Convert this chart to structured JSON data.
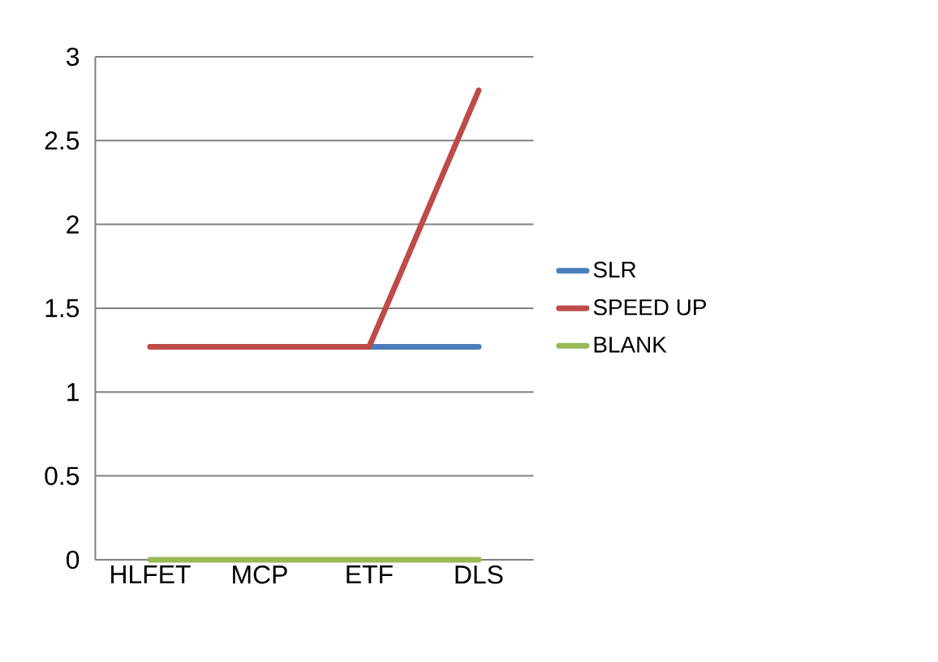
{
  "chart_data": {
    "type": "line",
    "categories": [
      "HLFET",
      "MCP",
      "ETF",
      "DLS"
    ],
    "series": [
      {
        "name": "SLR",
        "color": "#4a7ebb",
        "values": [
          null,
          null,
          1.27,
          1.27
        ]
      },
      {
        "name": "SPEED UP",
        "color": "#be4b48",
        "values": [
          1.27,
          1.27,
          1.27,
          2.8
        ]
      },
      {
        "name": "BLANK",
        "color": "#98b954",
        "values": [
          0,
          0,
          0,
          0
        ]
      }
    ],
    "ylim": [
      0,
      3
    ],
    "yticks": [
      0,
      0.5,
      1,
      1.5,
      2,
      2.5,
      3
    ],
    "grid": "y",
    "legend": "right",
    "marker": "none",
    "line_style": "solid"
  }
}
